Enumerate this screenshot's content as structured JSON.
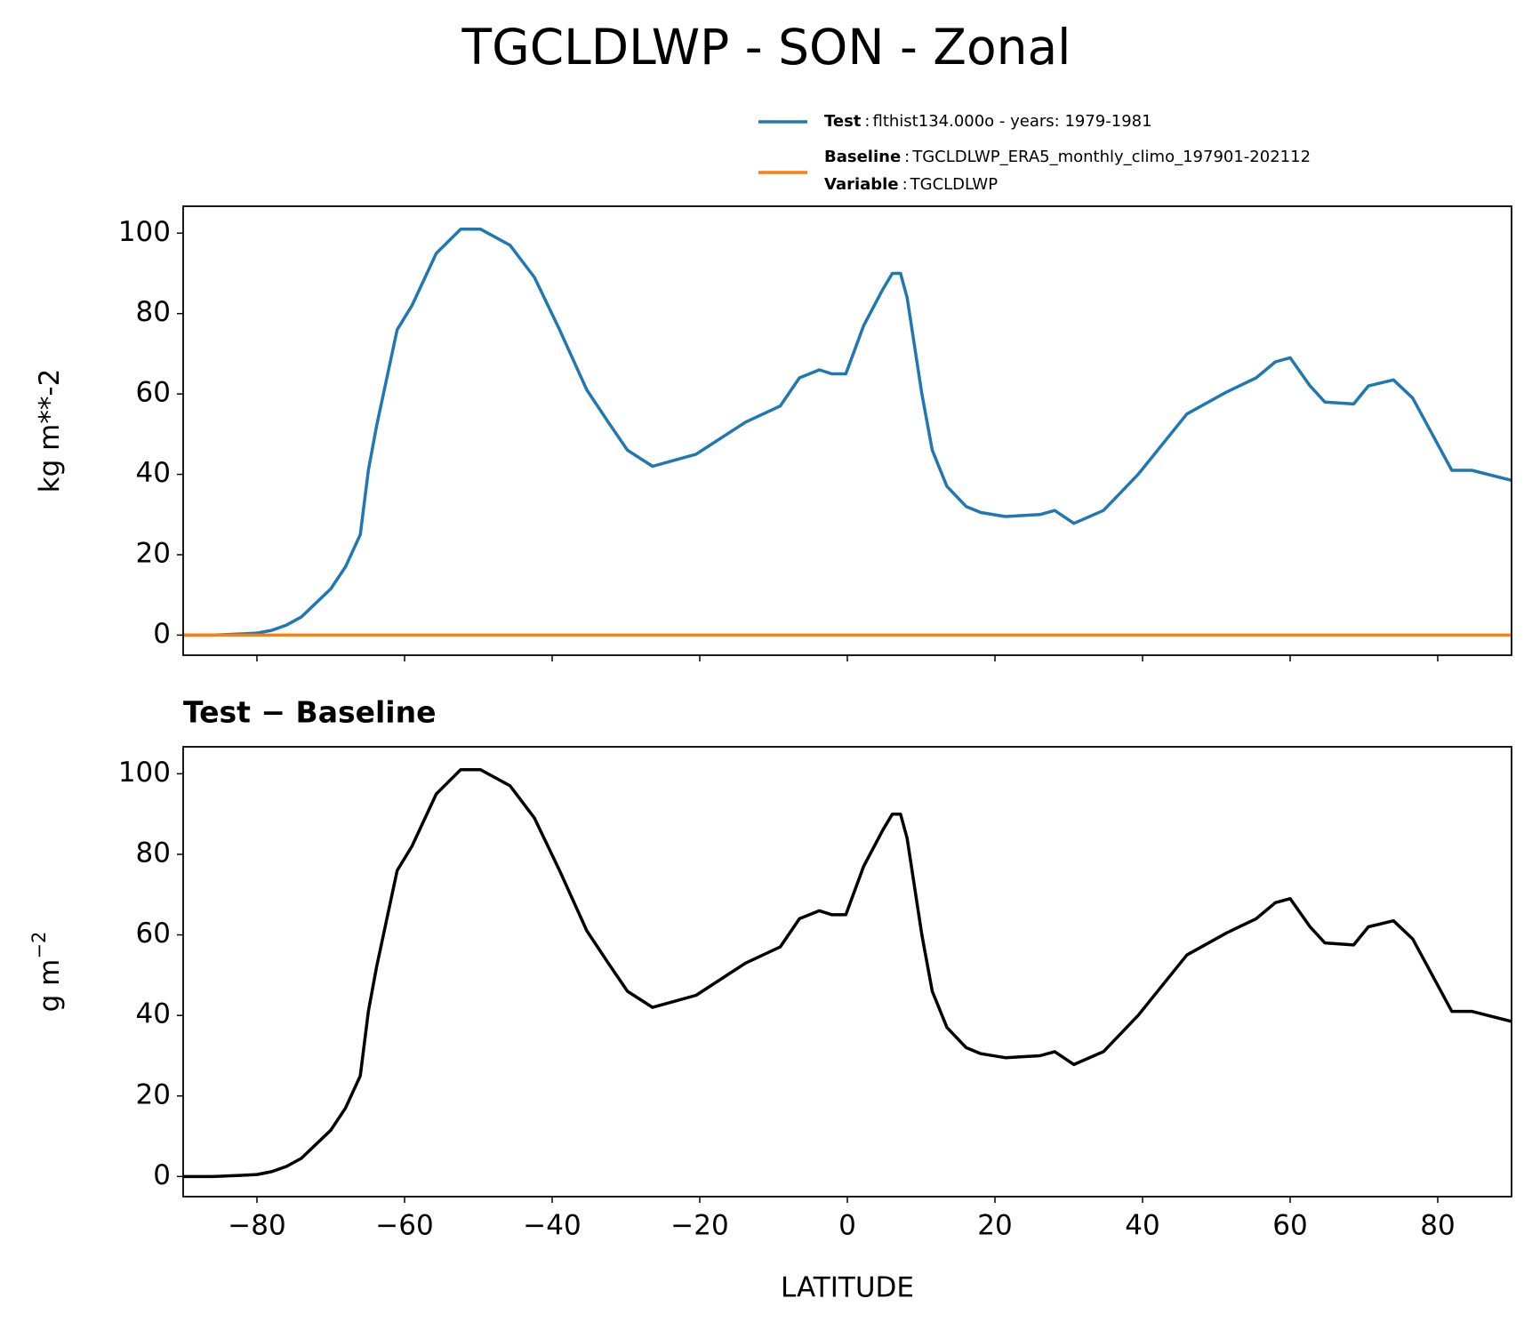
{
  "chart_data": [
    {
      "type": "line",
      "suptitle": "TGCLDLWP - SON - Zonal",
      "ylabel": "kg m**-2",
      "legend_separator": ":",
      "legend_note": {
        "key": "Variable",
        "text": "TGCLDLWP"
      },
      "xlim": [
        -90,
        90
      ],
      "ylim": [
        -5,
        106.7
      ],
      "xticks": [
        -80,
        -60,
        -40,
        -20,
        0,
        20,
        40,
        60,
        80
      ],
      "show_xtick_labels": false,
      "yticks": [
        0,
        20,
        40,
        60,
        80,
        100
      ],
      "series": [
        {
          "name": "Test",
          "description": "flthist134.000o - years: 1979-1981",
          "color": "#1f77b4",
          "x": [
            -90,
            -86,
            -82,
            -80,
            -78,
            -76,
            -74,
            -72,
            -70,
            -68,
            -66,
            -64.9,
            -63.8,
            -61,
            -59,
            -55.7,
            -52.4,
            -49.7,
            -45.7,
            -42.4,
            -39,
            -35.3,
            -32.4,
            -29.8,
            -26.4,
            -20.5,
            -13.8,
            -9.1,
            -6.5,
            -3.8,
            -2.1,
            -0.2,
            2.2,
            4.8,
            6.1,
            7.2,
            8.1,
            10.1,
            11.5,
            13.5,
            16.1,
            18.1,
            21.4,
            26.1,
            28.1,
            30.7,
            34.7,
            39.4,
            46,
            51.4,
            55.4,
            58,
            60,
            62.7,
            64.7,
            68.6,
            70.6,
            74,
            76.6,
            81.9,
            84.6,
            90
          ],
          "values": [
            0,
            0,
            0.3,
            0.5,
            1.2,
            2.5,
            4.5,
            8,
            11.5,
            17,
            25,
            41,
            52,
            76,
            82,
            95,
            101,
            101,
            97,
            89,
            76,
            61,
            53,
            46,
            42,
            45,
            53,
            57,
            64,
            66,
            65,
            65,
            77,
            86,
            90,
            90,
            84,
            60,
            46,
            37,
            32,
            30.5,
            29.5,
            30,
            31,
            27.8,
            31,
            40,
            55,
            60.5,
            64,
            68,
            69,
            62,
            58,
            57.5,
            62,
            63.5,
            59,
            41,
            41,
            38.5
          ]
        },
        {
          "name": "Baseline",
          "description": "TGCLDLWP_ERA5_monthly_climo_197901-202112",
          "color": "#ff7f0e",
          "x": [
            -90,
            90
          ],
          "values": [
            0,
            0
          ]
        }
      ]
    },
    {
      "type": "line",
      "title": "Test − Baseline",
      "ylabel": "g m",
      "ylabel_exponent": "−2",
      "xlabel": "LATITUDE",
      "xlim": [
        -90,
        90
      ],
      "ylim": [
        -5,
        106.7
      ],
      "xticks": [
        {
          "value": -80,
          "label": "−80"
        },
        {
          "value": -60,
          "label": "−60"
        },
        {
          "value": -40,
          "label": "−40"
        },
        {
          "value": -20,
          "label": "−20"
        },
        0,
        20,
        40,
        60,
        80
      ],
      "show_xtick_labels": true,
      "yticks": [
        0,
        20,
        40,
        60,
        80,
        100
      ],
      "series": [
        {
          "color": "#000000",
          "x": [
            -90,
            -86,
            -82,
            -80,
            -78,
            -76,
            -74,
            -72,
            -70,
            -68,
            -66,
            -64.9,
            -63.8,
            -61,
            -59,
            -55.7,
            -52.4,
            -49.7,
            -45.7,
            -42.4,
            -39,
            -35.3,
            -32.4,
            -29.8,
            -26.4,
            -20.5,
            -13.8,
            -9.1,
            -6.5,
            -3.8,
            -2.1,
            -0.2,
            2.2,
            4.8,
            6.1,
            7.2,
            8.1,
            10.1,
            11.5,
            13.5,
            16.1,
            18.1,
            21.4,
            26.1,
            28.1,
            30.7,
            34.7,
            39.4,
            46,
            51.4,
            55.4,
            58,
            60,
            62.7,
            64.7,
            68.6,
            70.6,
            74,
            76.6,
            81.9,
            84.6,
            90
          ],
          "values": [
            0,
            0,
            0.3,
            0.5,
            1.2,
            2.5,
            4.5,
            8,
            11.5,
            17,
            25,
            41,
            52,
            76,
            82,
            95,
            101,
            101,
            97,
            89,
            76,
            61,
            53,
            46,
            42,
            45,
            53,
            57,
            64,
            66,
            65,
            65,
            77,
            86,
            90,
            90,
            84,
            60,
            46,
            37,
            32,
            30.5,
            29.5,
            30,
            31,
            27.8,
            31,
            40,
            55,
            60.5,
            64,
            68,
            69,
            62,
            58,
            57.5,
            62,
            63.5,
            59,
            41,
            41,
            38.5
          ]
        }
      ]
    }
  ]
}
